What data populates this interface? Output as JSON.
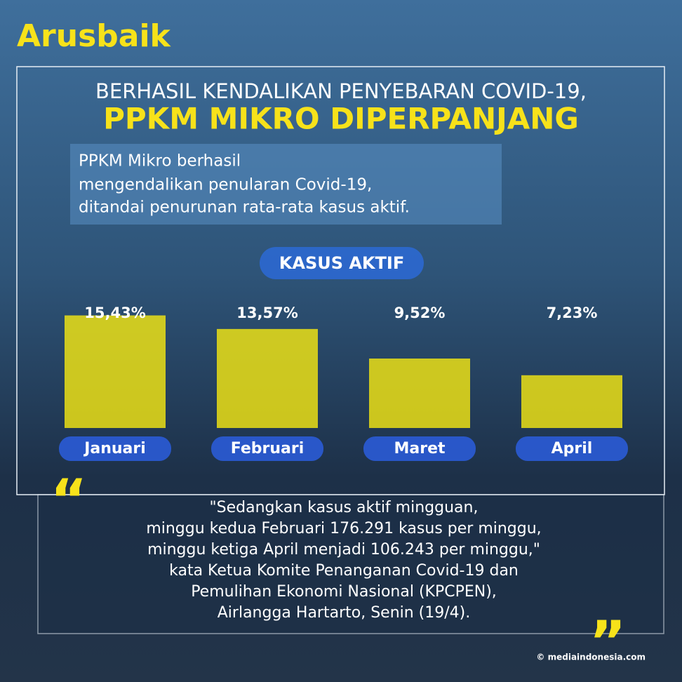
{
  "brand": "Arusbaik",
  "header": {
    "line1": "BERHASIL KENDALIKAN PENYEBARAN COVID-19,",
    "line2": "PPKM MIKRO DIPERPANJANG"
  },
  "intro": [
    "PPKM Mikro berhasil",
    "mengendalikan penularan Covid-19,",
    "ditandai penurunan rata-rata kasus aktif."
  ],
  "chart_data": {
    "type": "bar",
    "title": "KASUS AKTIF",
    "categories": [
      "Januari",
      "Februari",
      "Maret",
      "April"
    ],
    "values": [
      15.43,
      13.57,
      9.52,
      7.23
    ],
    "value_labels": [
      "15,43%",
      "13,57%",
      "9,52%",
      "7,23%"
    ],
    "color": "#f7ea10"
  },
  "quote": [
    "\"Sedangkan kasus aktif mingguan,",
    "minggu kedua Februari 176.291 kasus per minggu,",
    "minggu ketiga April menjadi 106.243 per minggu,\"",
    "kata Ketua Komite Penanganan Covid-19 dan",
    "Pemulihan Ekonomi Nasional (KPCPEN),",
    "Airlangga Hartarto, Senin (19/4)."
  ],
  "credit": "© mediaindonesia.com"
}
